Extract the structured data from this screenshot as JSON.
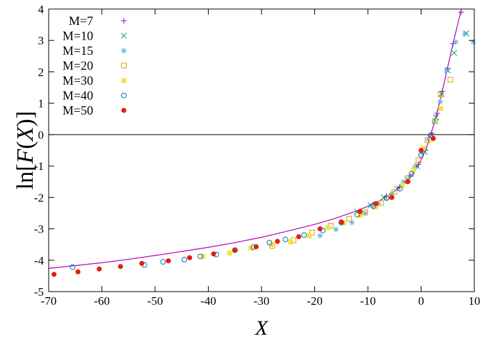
{
  "chart_data": {
    "type": "scatter",
    "title": "",
    "xlabel": "X",
    "ylabel": "ln[F(X)]",
    "ylabel_parts": {
      "prefix": "ln[",
      "func": "F",
      "open": "(",
      "var": "X",
      "close": ")]"
    },
    "xlim": [
      -70,
      10
    ],
    "ylim": [
      -5,
      4
    ],
    "xticks": [
      -70,
      -60,
      -50,
      -40,
      -30,
      -20,
      -10,
      0,
      10
    ],
    "yticks": [
      -5,
      -4,
      -3,
      -2,
      -1,
      0,
      1,
      2,
      3,
      4
    ],
    "xtick_labels": [
      "-70",
      "-60",
      "-50",
      "-40",
      "-30",
      "-20",
      "-10",
      "0",
      "10"
    ],
    "ytick_labels": [
      "-5",
      "-4",
      "-3",
      "-2",
      "-1",
      "0",
      "1",
      "2",
      "3",
      "4"
    ],
    "grid": false,
    "legend_position": "top-left",
    "zero_line": true,
    "curve": {
      "color": "#b000b8",
      "points": [
        [
          -70,
          -4.26
        ],
        [
          -65,
          -4.17
        ],
        [
          -60,
          -4.08
        ],
        [
          -55,
          -3.97
        ],
        [
          -50,
          -3.85
        ],
        [
          -45,
          -3.72
        ],
        [
          -40,
          -3.59
        ],
        [
          -35,
          -3.44
        ],
        [
          -30,
          -3.27
        ],
        [
          -25,
          -3.07
        ],
        [
          -20,
          -2.86
        ],
        [
          -17,
          -2.71
        ],
        [
          -15,
          -2.6
        ],
        [
          -12,
          -2.42
        ],
        [
          -10,
          -2.28
        ],
        [
          -8,
          -2.12
        ],
        [
          -6,
          -1.92
        ],
        [
          -4,
          -1.68
        ],
        [
          -3,
          -1.53
        ],
        [
          -2,
          -1.34
        ],
        [
          -1,
          -1.1
        ],
        [
          0,
          -0.8
        ],
        [
          1,
          -0.42
        ],
        [
          2,
          0.1
        ],
        [
          3,
          0.7
        ],
        [
          4,
          1.4
        ],
        [
          5,
          2.15
        ],
        [
          6,
          2.9
        ],
        [
          7,
          3.6
        ],
        [
          7.6,
          4.0
        ]
      ]
    },
    "series": [
      {
        "name": "M=7",
        "marker": "plus",
        "color": "#9400d3",
        "points": [
          [
            -9,
            -2.21
          ],
          [
            -6.5,
            -1.95
          ],
          [
            -4,
            -1.66
          ],
          [
            -2,
            -1.33
          ],
          [
            -0.5,
            -0.95
          ],
          [
            0.8,
            -0.5
          ],
          [
            2,
            0.05
          ],
          [
            3,
            0.68
          ],
          [
            4,
            1.38
          ],
          [
            5,
            2.1
          ],
          [
            6,
            2.9
          ],
          [
            7.5,
            3.9
          ]
        ]
      },
      {
        "name": "M=10",
        "marker": "cross",
        "color": "#009e73",
        "points": [
          [
            -12,
            -2.45
          ],
          [
            -9.5,
            -2.25
          ],
          [
            -7,
            -2.0
          ],
          [
            -4.5,
            -1.72
          ],
          [
            -2.5,
            -1.42
          ],
          [
            -0.8,
            -1.0
          ],
          [
            0.7,
            -0.55
          ],
          [
            1.8,
            -0.1
          ],
          [
            2.8,
            0.55
          ],
          [
            3.8,
            1.3
          ],
          [
            5,
            2.05
          ],
          [
            6.2,
            2.6
          ],
          [
            8.5,
            3.22
          ]
        ]
      },
      {
        "name": "M=15",
        "marker": "star",
        "color": "#56b4e9",
        "points": [
          [
            -19,
            -3.22
          ],
          [
            -16,
            -3.02
          ],
          [
            -13,
            -2.8
          ],
          [
            -10.5,
            -2.5
          ],
          [
            -8,
            -2.2
          ],
          [
            -5.5,
            -1.88
          ],
          [
            -3.3,
            -1.5
          ],
          [
            -1.3,
            -1.05
          ],
          [
            0.2,
            -0.58
          ],
          [
            1.3,
            -0.15
          ],
          [
            2.5,
            0.4
          ],
          [
            3.6,
            1.05
          ],
          [
            4.8,
            2.05
          ],
          [
            6.5,
            2.95
          ],
          [
            8.2,
            3.22
          ],
          [
            9.8,
            2.95
          ]
        ]
      },
      {
        "name": "M=20",
        "marker": "square-open",
        "color": "#e69f00",
        "points": [
          [
            -28,
            -3.54
          ],
          [
            -24,
            -3.36
          ],
          [
            -20.5,
            -3.12
          ],
          [
            -17,
            -2.9
          ],
          [
            -13.5,
            -2.68
          ],
          [
            -10.5,
            -2.47
          ],
          [
            -7.5,
            -2.18
          ],
          [
            -5,
            -1.82
          ],
          [
            -2.5,
            -1.38
          ],
          [
            -0.5,
            -0.82
          ],
          [
            1.2,
            -0.18
          ],
          [
            2.6,
            0.43
          ],
          [
            3.7,
            1.28
          ],
          [
            5.5,
            1.75
          ]
        ]
      },
      {
        "name": "M=30",
        "marker": "square-filled",
        "color": "#f0e442",
        "points": [
          [
            -41,
            -3.88
          ],
          [
            -36,
            -3.77
          ],
          [
            -32,
            -3.62
          ],
          [
            -28,
            -3.5
          ],
          [
            -24.5,
            -3.42
          ],
          [
            -21,
            -3.23
          ],
          [
            -17.5,
            -2.96
          ],
          [
            -14.5,
            -2.81
          ],
          [
            -11.5,
            -2.57
          ],
          [
            -8.5,
            -2.3
          ],
          [
            -6,
            -2.0
          ],
          [
            -3.5,
            -1.62
          ],
          [
            -1.4,
            -1.12
          ],
          [
            0.4,
            -0.43
          ],
          [
            2,
            -0.15
          ],
          [
            3.7,
            0.83
          ]
        ]
      },
      {
        "name": "M=40",
        "marker": "circle-open",
        "color": "#0072b2",
        "points": [
          [
            -65.5,
            -4.22
          ],
          [
            -52,
            -4.15
          ],
          [
            -48.5,
            -4.05
          ],
          [
            -44.5,
            -3.98
          ],
          [
            -41.5,
            -3.88
          ],
          [
            -38.5,
            -3.82
          ],
          [
            -35,
            -3.68
          ],
          [
            -31.5,
            -3.58
          ],
          [
            -28.5,
            -3.44
          ],
          [
            -25.5,
            -3.34
          ],
          [
            -22,
            -3.2
          ],
          [
            -18.5,
            -3.05
          ],
          [
            -15,
            -2.8
          ],
          [
            -12,
            -2.55
          ],
          [
            -9,
            -2.28
          ],
          [
            -6.5,
            -2.02
          ],
          [
            -4,
            -1.72
          ],
          [
            -1.8,
            -1.25
          ],
          [
            0,
            -0.65
          ],
          [
            1.8,
            -0.02
          ]
        ]
      },
      {
        "name": "M=50",
        "marker": "circle-filled",
        "color": "#e51e10",
        "points": [
          [
            -69,
            -4.45
          ],
          [
            -64.5,
            -4.37
          ],
          [
            -60.5,
            -4.28
          ],
          [
            -56.5,
            -4.2
          ],
          [
            -52.5,
            -4.1
          ],
          [
            -47.5,
            -4.02
          ],
          [
            -43.5,
            -3.92
          ],
          [
            -39,
            -3.8
          ],
          [
            -35,
            -3.68
          ],
          [
            -31,
            -3.57
          ],
          [
            -27,
            -3.4
          ],
          [
            -23,
            -3.25
          ],
          [
            -19,
            -3.0
          ],
          [
            -15,
            -2.78
          ],
          [
            -11.5,
            -2.45
          ],
          [
            -8.5,
            -2.2
          ],
          [
            -5.5,
            -2.0
          ],
          [
            -2.5,
            -1.5
          ],
          [
            0,
            -0.5
          ],
          [
            2.3,
            -0.12
          ]
        ]
      }
    ]
  }
}
